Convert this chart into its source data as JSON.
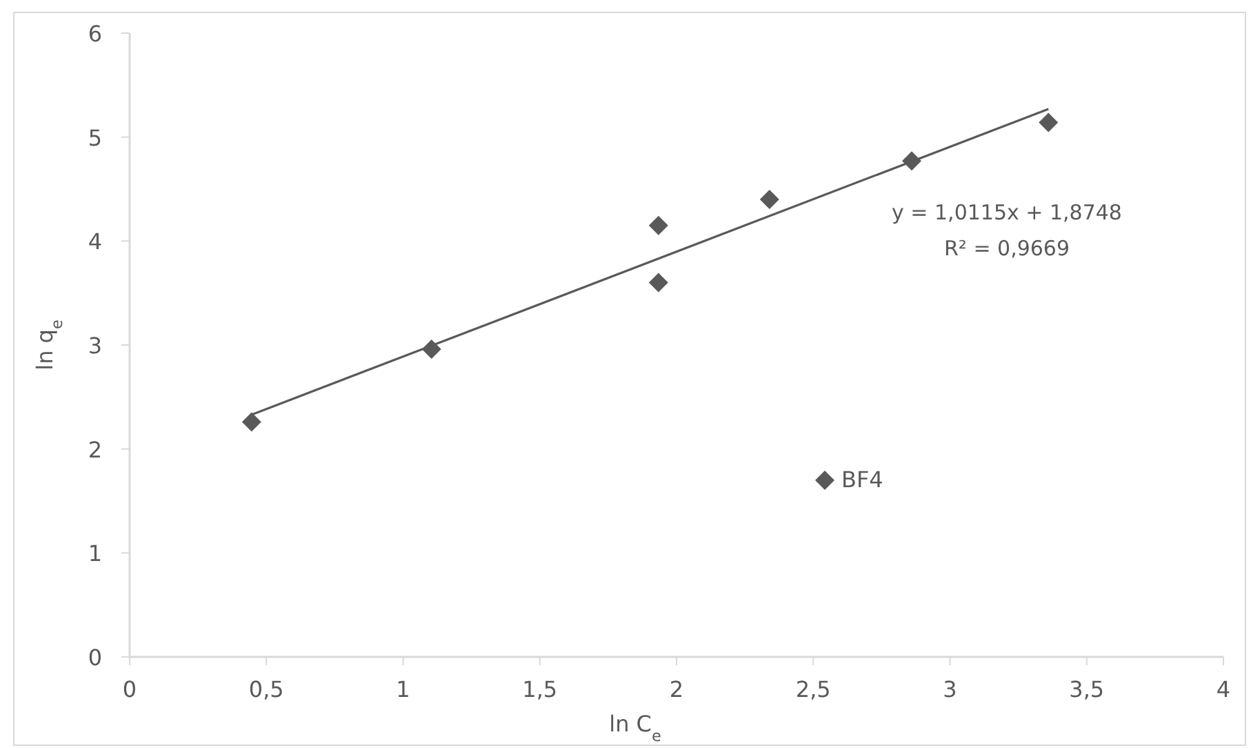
{
  "chart_data": {
    "type": "scatter",
    "xlabel": "ln C$_{e}$",
    "ylabel": "ln q$_{e}$",
    "xlim": [
      0,
      4
    ],
    "xticks": [
      0,
      {
        "value": 0.5,
        "label": "0,5"
      },
      1,
      {
        "value": 1.5,
        "label": "1,5"
      },
      2,
      {
        "value": 2.5,
        "label": "2,5"
      },
      3,
      {
        "value": 3.5,
        "label": "3,5"
      },
      4
    ],
    "ylim": [
      0,
      6
    ],
    "yticks": [
      0,
      1,
      2,
      3,
      4,
      5,
      6
    ],
    "grid": false,
    "legend": "bottom right",
    "marker": "diamond",
    "series": [
      {
        "name": "BF4",
        "color": "#595959",
        "x": [
          0.446,
          1.104,
          1.934,
          1.934,
          2.34,
          2.86,
          3.36
        ],
        "values": [
          2.26,
          2.96,
          4.15,
          3.6,
          4.4,
          4.77,
          5.14
        ]
      },
      {
        "type": "line",
        "color": "#595959",
        "x": [
          0.446,
          3.36
        ],
        "values": [
          2.33,
          5.27
        ],
        "marker": "none"
      }
    ],
    "annotations": [
      "y = 1,0115x + 1,8748",
      "R² = 0,9669"
    ]
  }
}
